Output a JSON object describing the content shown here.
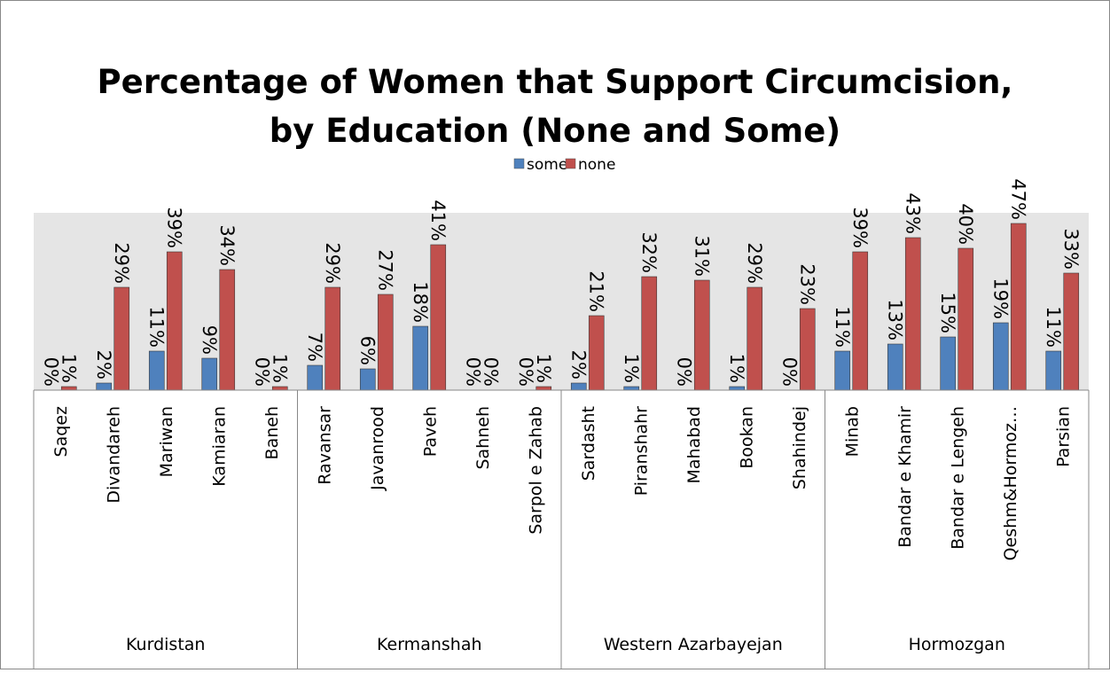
{
  "chart_data": {
    "type": "bar",
    "title": [
      "Percentage of Women that Support Circumcision,",
      "by Education (None and Some)"
    ],
    "groups": [
      {
        "name": "Kurdistan",
        "categories": [
          "Saqez",
          "Divandareh",
          "Mariwan",
          "Kamiaran",
          "Baneh"
        ]
      },
      {
        "name": "Kermanshah",
        "categories": [
          "Ravansar",
          "Javanrood",
          "Paveh",
          "Sahneh",
          "Sarpol e Zahab"
        ]
      },
      {
        "name": "Western Azarbayejan",
        "categories": [
          "Sardasht",
          "Piranshahr",
          "Mahabad",
          "Bookan",
          "Shahindej"
        ]
      },
      {
        "name": "Hormozgan",
        "categories": [
          "Minab",
          "Bandar e Khamir",
          "Bandar e Lengeh",
          "Qeshm&Hormoz…",
          "Parsian"
        ]
      }
    ],
    "series": [
      {
        "name": "some",
        "color": "#4f81bd",
        "values": [
          0,
          2,
          11,
          9,
          0,
          7,
          6,
          18,
          0,
          0,
          2,
          1,
          0,
          1,
          0,
          11,
          13,
          15,
          19,
          11
        ],
        "value_labels": [
          "0%",
          "2%",
          "11%",
          "9%",
          "0%",
          "7%",
          "6%",
          "18%",
          "0%",
          "0%",
          "2%",
          "1%",
          "0%",
          "1%",
          "0%",
          "11%",
          "13%",
          "15%",
          "19%",
          "11%"
        ]
      },
      {
        "name": "none",
        "color": "#c0504d",
        "values": [
          1,
          29,
          39,
          34,
          1,
          29,
          27,
          41,
          0,
          1,
          21,
          32,
          31,
          29,
          23,
          39,
          43,
          40,
          47,
          33
        ],
        "value_labels": [
          "1%",
          "29%",
          "39%",
          "34%",
          "1%",
          "29%",
          "27%",
          "41%",
          "0%",
          "1%",
          "21%",
          "32%",
          "31%",
          "29%",
          "23%",
          "39%",
          "43%",
          "40%",
          "47%",
          "33%"
        ]
      }
    ],
    "ylim": [
      0,
      50
    ],
    "legend": "top"
  }
}
